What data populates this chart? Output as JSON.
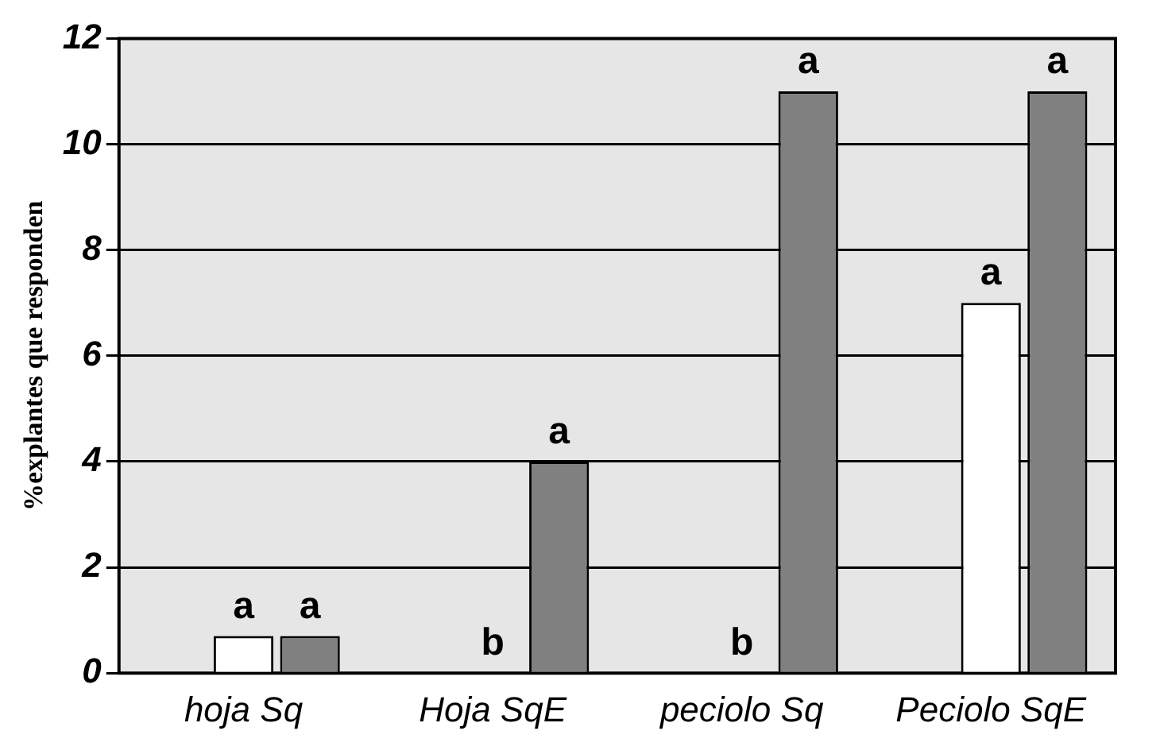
{
  "chart_data": {
    "type": "bar",
    "ylabel": "%explantes que responden",
    "categories": [
      "hoja Sq",
      "Hoja SqE",
      "peciolo Sq",
      "Peciolo SqE"
    ],
    "series": [
      {
        "color": "#c8c8c8",
        "values": [
          0,
          0,
          0,
          0
        ]
      },
      {
        "color": "#ffffff",
        "values": [
          0.7,
          0,
          0,
          7
        ],
        "value_labels": [
          "a",
          "b",
          "b",
          "a"
        ]
      },
      {
        "color": "#808080",
        "values": [
          0.7,
          4,
          11,
          11
        ],
        "value_labels": [
          "a",
          "a",
          "a",
          "a"
        ]
      }
    ],
    "ylim": [
      0,
      12
    ],
    "yticks": [
      0,
      2,
      4,
      6,
      8,
      10,
      12
    ],
    "grid": "y"
  }
}
